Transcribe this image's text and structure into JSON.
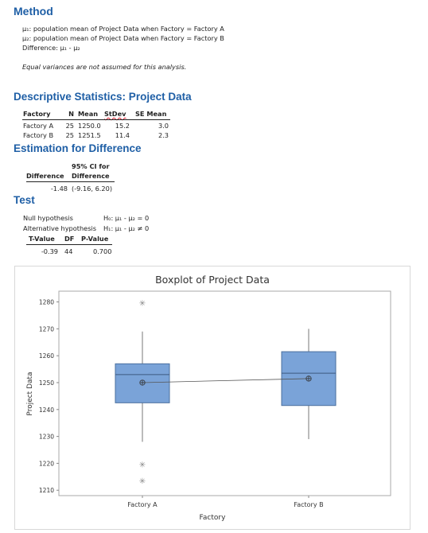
{
  "method": {
    "title": "Method",
    "mu1": "μ₁: population mean of Project Data when Factory = Factory A",
    "mu2": "µ₂: population mean of Project Data when Factory = Factory B",
    "difference": "Difference: µ₁ - µ₂",
    "note": "Equal variances are not assumed for this analysis."
  },
  "descriptive": {
    "title": "Descriptive Statistics: Project Data",
    "headers": [
      "Factory",
      "N",
      "Mean",
      "StDev",
      "SE Mean"
    ],
    "rows": [
      [
        "Factory A",
        "25",
        "1250.0",
        "15.2",
        "3.0"
      ],
      [
        "Factory B",
        "25",
        "1251.5",
        "11.4",
        "2.3"
      ]
    ]
  },
  "estimation": {
    "title": "Estimation for Difference",
    "header_top": "95% CI for",
    "header_left": "Difference",
    "header_right": "Difference",
    "difference": "-1.48",
    "ci": "(-9.16, 6.20)"
  },
  "test": {
    "title": "Test",
    "null_label": "Null hypothesis",
    "null_value": "H₀: µ₁ - µ₂ = 0",
    "alt_label": "Alternative hypothesis",
    "alt_value": "H₁: µ₁ - µ₂ ≠ 0",
    "headers": [
      "T-Value",
      "DF",
      "P-Value"
    ],
    "values": [
      "-0.39",
      "44",
      "0.700"
    ]
  },
  "chart_data": {
    "type": "boxplot",
    "title": "Boxplot of Project Data",
    "xlabel": "Factory",
    "ylabel": "Project Data",
    "ylim": [
      1208,
      1284
    ],
    "yticks": [
      1210,
      1220,
      1230,
      1240,
      1250,
      1260,
      1270,
      1280
    ],
    "box_color": "#7aa3d8",
    "categories": [
      "Factory A",
      "Factory B"
    ],
    "boxes": [
      {
        "category": "Factory A",
        "whisker_low": 1228,
        "q1": 1242.5,
        "median": 1253,
        "q3": 1257,
        "whisker_high": 1269,
        "mean": 1250.0,
        "outliers": [
          1279.5,
          1219.5,
          1213.5
        ]
      },
      {
        "category": "Factory B",
        "whisker_low": 1229,
        "q1": 1241.5,
        "median": 1253.5,
        "q3": 1261.5,
        "whisker_high": 1270,
        "mean": 1251.5,
        "outliers": []
      }
    ]
  }
}
